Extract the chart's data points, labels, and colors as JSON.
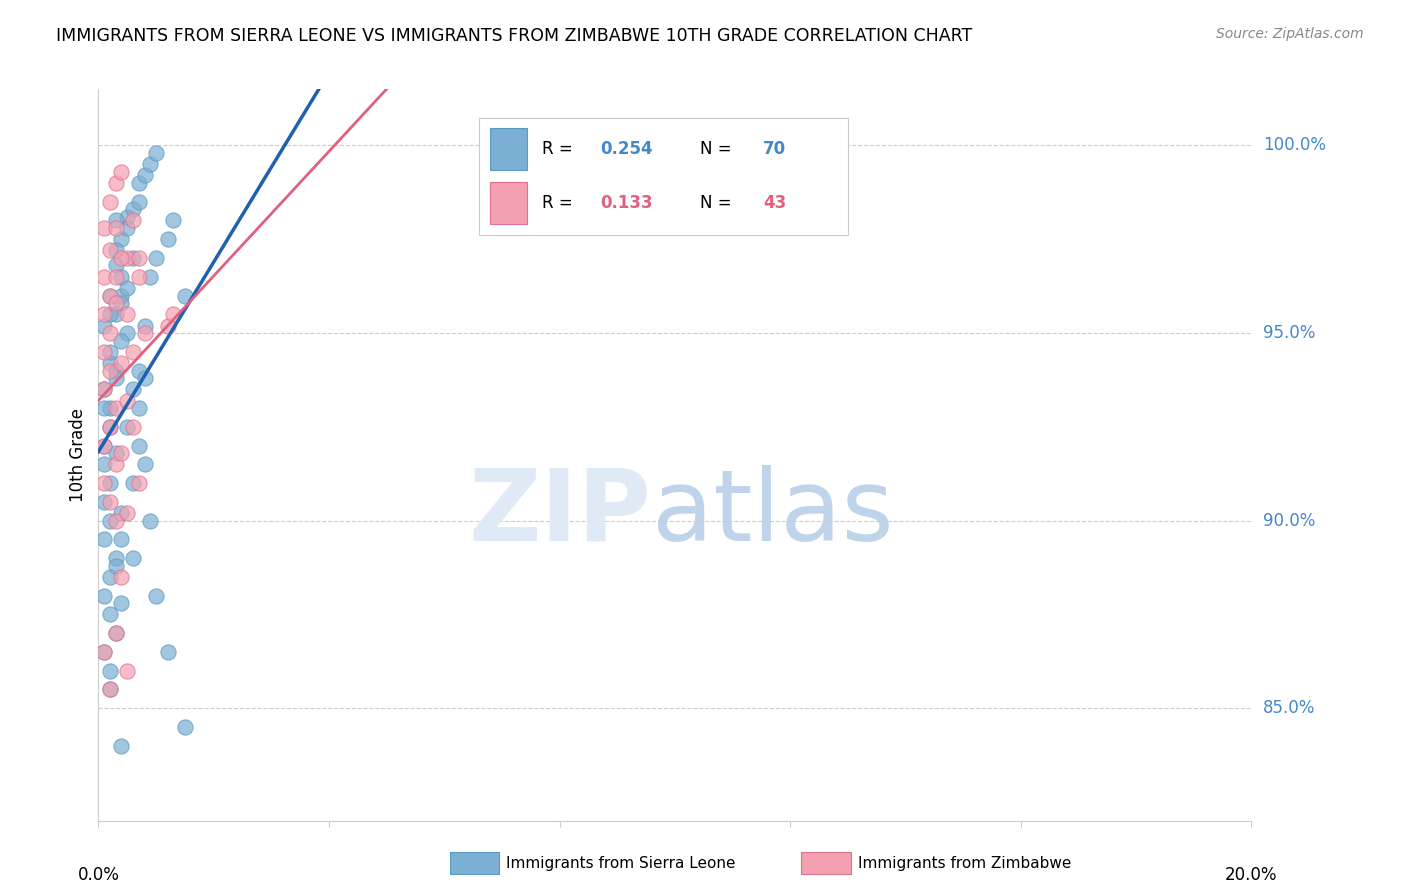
{
  "title": "IMMIGRANTS FROM SIERRA LEONE VS IMMIGRANTS FROM ZIMBABWE 10TH GRADE CORRELATION CHART",
  "source": "Source: ZipAtlas.com",
  "ylabel": "10th Grade",
  "yticks": [
    85.0,
    90.0,
    95.0,
    100.0
  ],
  "ytick_labels": [
    "85.0%",
    "90.0%",
    "95.0%",
    "100.0%"
  ],
  "xlim": [
    0.0,
    0.2
  ],
  "ylim": [
    82.0,
    101.5
  ],
  "sierra_leone_color": "#7bafd4",
  "sierra_leone_edge": "#5a9abf",
  "zimbabwe_color": "#f4a0b0",
  "zimbabwe_edge": "#e07090",
  "legend_R_sierra": "0.254",
  "legend_N_sierra": "70",
  "legend_R_zimbabwe": "0.133",
  "legend_N_zimbabwe": "43",
  "sierra_leone_points": [
    [
      0.001,
      93.5
    ],
    [
      0.002,
      94.2
    ],
    [
      0.003,
      96.8
    ],
    [
      0.004,
      97.5
    ],
    [
      0.005,
      98.1
    ],
    [
      0.006,
      98.3
    ],
    [
      0.007,
      99.0
    ],
    [
      0.008,
      99.2
    ],
    [
      0.009,
      99.5
    ],
    [
      0.01,
      99.8
    ],
    [
      0.001,
      92.0
    ],
    [
      0.002,
      93.0
    ],
    [
      0.003,
      95.5
    ],
    [
      0.004,
      96.0
    ],
    [
      0.005,
      97.8
    ],
    [
      0.006,
      97.0
    ],
    [
      0.007,
      98.5
    ],
    [
      0.003,
      98.0
    ],
    [
      0.004,
      96.5
    ],
    [
      0.005,
      95.0
    ],
    [
      0.001,
      91.5
    ],
    [
      0.002,
      92.5
    ],
    [
      0.001,
      93.0
    ],
    [
      0.002,
      94.5
    ],
    [
      0.003,
      94.0
    ],
    [
      0.004,
      95.8
    ],
    [
      0.005,
      96.2
    ],
    [
      0.002,
      96.0
    ],
    [
      0.003,
      97.2
    ],
    [
      0.001,
      95.2
    ],
    [
      0.002,
      95.5
    ],
    [
      0.003,
      93.8
    ],
    [
      0.004,
      94.8
    ],
    [
      0.001,
      90.5
    ],
    [
      0.002,
      91.0
    ],
    [
      0.001,
      89.5
    ],
    [
      0.002,
      90.0
    ],
    [
      0.003,
      91.8
    ],
    [
      0.002,
      88.5
    ],
    [
      0.003,
      89.0
    ],
    [
      0.004,
      90.2
    ],
    [
      0.001,
      88.0
    ],
    [
      0.002,
      87.5
    ],
    [
      0.003,
      88.8
    ],
    [
      0.004,
      89.5
    ],
    [
      0.001,
      86.5
    ],
    [
      0.002,
      86.0
    ],
    [
      0.003,
      87.0
    ],
    [
      0.004,
      87.8
    ],
    [
      0.002,
      85.5
    ],
    [
      0.006,
      93.5
    ],
    [
      0.007,
      94.0
    ],
    [
      0.008,
      95.2
    ],
    [
      0.009,
      96.5
    ],
    [
      0.01,
      97.0
    ],
    [
      0.012,
      97.5
    ],
    [
      0.015,
      96.0
    ],
    [
      0.013,
      98.0
    ],
    [
      0.007,
      92.0
    ],
    [
      0.008,
      91.5
    ],
    [
      0.009,
      90.0
    ],
    [
      0.01,
      88.0
    ],
    [
      0.012,
      86.5
    ],
    [
      0.015,
      84.5
    ],
    [
      0.007,
      93.0
    ],
    [
      0.005,
      92.5
    ],
    [
      0.006,
      91.0
    ],
    [
      0.008,
      93.8
    ],
    [
      0.006,
      89.0
    ],
    [
      0.004,
      84.0
    ]
  ],
  "zimbabwe_points": [
    [
      0.001,
      97.8
    ],
    [
      0.002,
      98.5
    ],
    [
      0.003,
      99.0
    ],
    [
      0.004,
      99.3
    ],
    [
      0.005,
      97.0
    ],
    [
      0.001,
      96.5
    ],
    [
      0.002,
      97.2
    ],
    [
      0.003,
      97.8
    ],
    [
      0.001,
      95.5
    ],
    [
      0.002,
      96.0
    ],
    [
      0.003,
      96.5
    ],
    [
      0.004,
      97.0
    ],
    [
      0.001,
      94.5
    ],
    [
      0.002,
      95.0
    ],
    [
      0.003,
      95.8
    ],
    [
      0.001,
      93.5
    ],
    [
      0.002,
      94.0
    ],
    [
      0.003,
      93.0
    ],
    [
      0.004,
      94.2
    ],
    [
      0.005,
      95.5
    ],
    [
      0.001,
      92.0
    ],
    [
      0.002,
      92.5
    ],
    [
      0.003,
      91.5
    ],
    [
      0.001,
      91.0
    ],
    [
      0.002,
      90.5
    ],
    [
      0.003,
      90.0
    ],
    [
      0.004,
      91.8
    ],
    [
      0.001,
      86.5
    ],
    [
      0.002,
      85.5
    ],
    [
      0.003,
      87.0
    ],
    [
      0.006,
      98.0
    ],
    [
      0.007,
      96.5
    ],
    [
      0.008,
      95.0
    ],
    [
      0.012,
      95.2
    ],
    [
      0.005,
      93.2
    ],
    [
      0.006,
      92.5
    ],
    [
      0.007,
      91.0
    ],
    [
      0.005,
      90.2
    ],
    [
      0.004,
      88.5
    ],
    [
      0.005,
      86.0
    ],
    [
      0.013,
      95.5
    ],
    [
      0.006,
      94.5
    ],
    [
      0.007,
      97.0
    ]
  ]
}
